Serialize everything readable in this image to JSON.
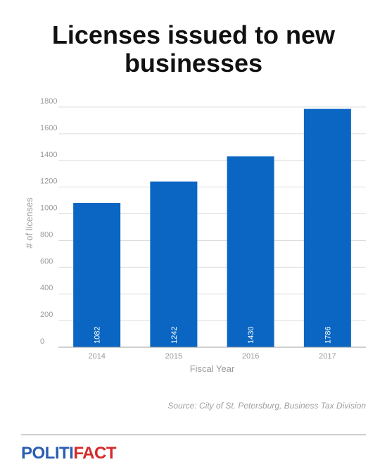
{
  "title": "Licenses issued to new businesses",
  "source": "Source: City of St. Petersburg, Business Tax Division",
  "logo": {
    "part1": "POLITI",
    "part2": "FACT"
  },
  "colors": {
    "bar": "#0a66c2",
    "grid": "#dddddd",
    "axis_text": "#999999",
    "logo_blue": "#2a5db0",
    "logo_red": "#d42a2a"
  },
  "chart_data": {
    "type": "bar",
    "categories": [
      "2014",
      "2015",
      "2016",
      "2017"
    ],
    "values": [
      1082,
      1242,
      1430,
      1786
    ],
    "title": "Licenses issued to new businesses",
    "xlabel": "Fiscal Year",
    "ylabel": "# of licenses",
    "ylim": [
      0,
      1800
    ],
    "yticks": [
      0,
      200,
      400,
      600,
      800,
      1000,
      1200,
      1400,
      1600,
      1800
    ],
    "grid": true,
    "data_labels": true
  }
}
